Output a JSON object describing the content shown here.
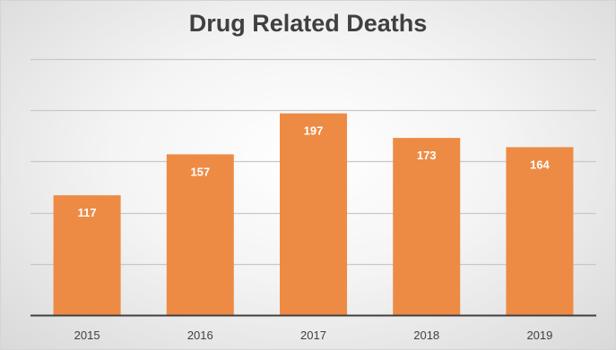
{
  "chart_data": {
    "type": "bar",
    "title": "Drug Related Deaths",
    "categories": [
      "2015",
      "2016",
      "2017",
      "2018",
      "2019"
    ],
    "values": [
      117,
      157,
      197,
      173,
      164
    ],
    "data_labels": [
      "117",
      "157",
      "197",
      "173",
      "164"
    ],
    "xlabel": "",
    "ylabel": "",
    "ylim": [
      0,
      250
    ],
    "y_gridlines": [
      50,
      100,
      150,
      200,
      250
    ],
    "grid": true,
    "legend": "none",
    "colors": {
      "bar": "#ED8B45",
      "gridline": "#c8c8c8",
      "axis": "#404040",
      "title": "#404040",
      "data_label": "#ffffff"
    }
  }
}
